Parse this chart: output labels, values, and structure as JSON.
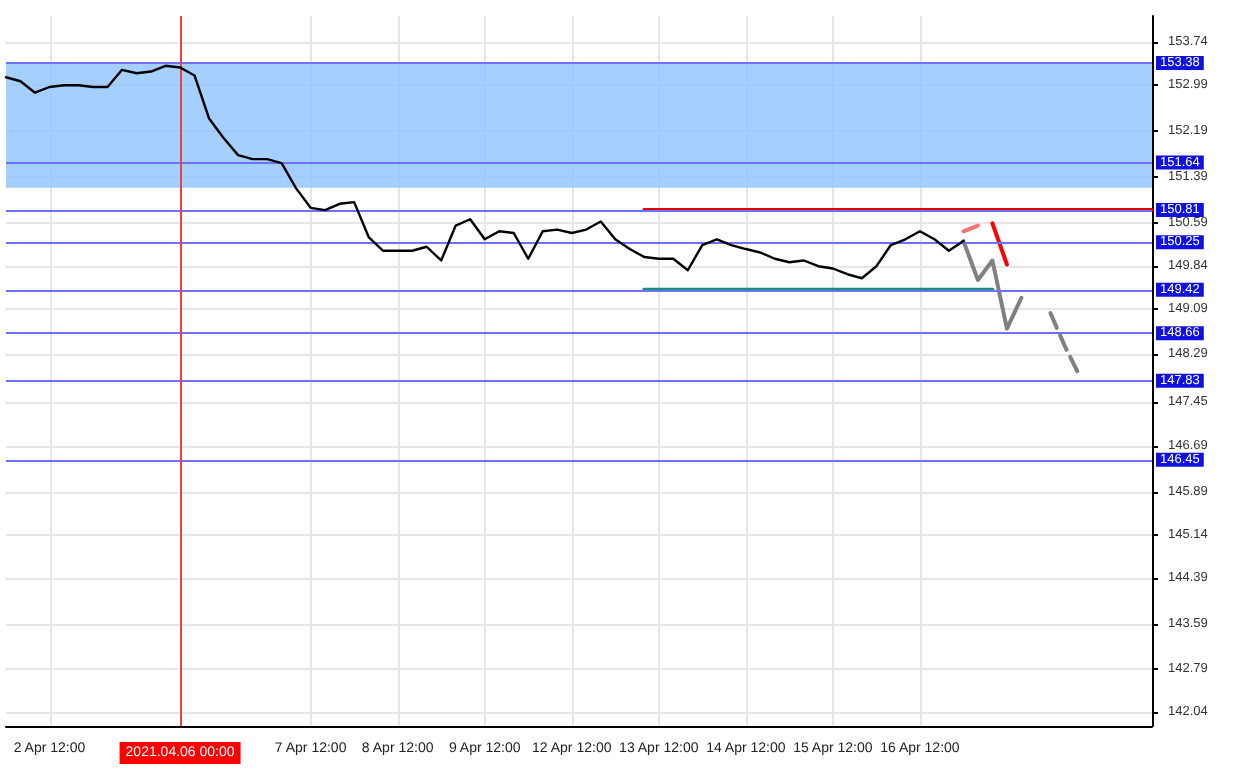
{
  "chart_data": {
    "type": "line",
    "categories": [
      null,
      null,
      null,
      "2 Apr 12:00",
      null,
      null,
      null,
      null,
      null,
      null,
      null,
      null,
      "2021.04.06 00:00",
      null,
      null,
      null,
      null,
      null,
      null,
      null,
      null,
      "7 Apr 12:00",
      null,
      null,
      null,
      null,
      null,
      "8 Apr 12:00",
      null,
      null,
      null,
      null,
      null,
      "9 Apr 12:00",
      null,
      null,
      null,
      null,
      null,
      "12 Apr 12:00",
      null,
      null,
      null,
      null,
      null,
      "13 Apr 12:00",
      null,
      null,
      null,
      null,
      null,
      "14 Apr 12:00",
      null,
      null,
      null,
      null,
      null,
      "15 Apr 12:00",
      null,
      null,
      null,
      null,
      null,
      "16 Apr 12:00",
      null,
      null,
      null,
      null,
      null,
      null,
      null,
      null,
      null,
      null,
      null,
      null,
      null,
      null,
      null,
      null
    ],
    "series": [
      {
        "color": "#000000",
        "values": [
          153.13,
          153.06,
          152.86,
          152.96,
          152.99,
          152.99,
          152.96,
          152.96,
          153.26,
          153.2,
          153.23,
          153.33,
          153.3,
          153.16,
          152.41,
          152.07,
          151.77,
          151.7,
          151.7,
          151.63,
          151.19,
          150.85,
          150.81,
          150.92,
          150.95,
          150.34,
          150.1,
          150.1,
          150.1,
          150.17,
          149.93,
          150.54,
          150.65,
          150.3,
          150.44,
          150.41,
          149.96,
          150.44,
          150.47,
          150.41,
          150.47,
          150.61,
          150.3,
          150.13,
          149.99,
          149.96,
          149.96,
          149.76,
          150.2,
          150.3,
          150.2,
          150.13,
          150.07,
          149.96,
          149.9,
          149.93,
          149.83,
          149.79,
          149.69,
          149.62,
          149.83,
          150.2,
          150.3,
          150.44,
          150.3,
          150.1,
          150.27,
          null,
          null,
          null,
          null,
          null,
          null,
          null,
          null,
          null,
          null,
          null,
          null,
          null
        ]
      },
      {
        "color": "#e00000",
        "values": [
          null,
          null,
          null,
          null,
          null,
          null,
          null,
          null,
          null,
          null,
          null,
          null,
          null,
          null,
          null,
          null,
          null,
          null,
          null,
          null,
          null,
          null,
          null,
          null,
          null,
          null,
          null,
          null,
          null,
          null,
          null,
          null,
          null,
          null,
          null,
          null,
          null,
          null,
          null,
          null,
          null,
          null,
          null,
          null,
          150.81,
          150.81,
          150.81,
          150.81,
          150.81,
          150.81,
          150.81,
          150.81,
          150.81,
          150.81,
          150.81,
          150.81,
          150.81,
          150.81,
          150.81,
          150.81,
          150.81,
          150.81,
          150.81,
          150.81,
          150.81,
          150.81,
          150.81,
          150.81,
          150.81,
          150.81,
          150.81,
          150.81,
          150.81,
          150.81,
          150.81,
          150.81,
          150.81,
          150.81,
          150.81,
          150.81
        ]
      },
      {
        "color": "#1a8f7a",
        "values": [
          null,
          null,
          null,
          null,
          null,
          null,
          null,
          null,
          null,
          null,
          null,
          null,
          null,
          null,
          null,
          null,
          null,
          null,
          null,
          null,
          null,
          null,
          null,
          null,
          null,
          null,
          null,
          null,
          null,
          null,
          null,
          null,
          null,
          null,
          null,
          null,
          null,
          null,
          null,
          null,
          null,
          null,
          null,
          null,
          149.42,
          149.42,
          149.42,
          149.42,
          149.42,
          149.42,
          149.42,
          149.42,
          149.42,
          149.42,
          149.42,
          149.42,
          149.42,
          149.42,
          149.42,
          149.42,
          149.42,
          149.42,
          149.42,
          149.42,
          149.42,
          149.42,
          149.42,
          149.42,
          149.42,
          null,
          null,
          null,
          null,
          null,
          null,
          null,
          null,
          null,
          null,
          null
        ]
      },
      {
        "color": "#808080",
        "values": [
          null,
          null,
          null,
          null,
          null,
          null,
          null,
          null,
          null,
          null,
          null,
          null,
          null,
          null,
          null,
          null,
          null,
          null,
          null,
          null,
          null,
          null,
          null,
          null,
          null,
          null,
          null,
          null,
          null,
          null,
          null,
          null,
          null,
          null,
          null,
          null,
          null,
          null,
          null,
          null,
          null,
          null,
          null,
          null,
          null,
          null,
          null,
          null,
          null,
          null,
          null,
          null,
          null,
          null,
          null,
          null,
          null,
          null,
          null,
          null,
          null,
          null,
          null,
          null,
          null,
          null,
          150.27,
          149.59,
          149.93,
          148.74,
          149.28,
          null,
          null,
          null,
          null,
          null,
          null,
          null,
          null,
          null
        ]
      },
      {
        "color": "#808080",
        "line_style": "dashed",
        "values": [
          null,
          null,
          null,
          null,
          null,
          null,
          null,
          null,
          null,
          null,
          null,
          null,
          null,
          null,
          null,
          null,
          null,
          null,
          null,
          null,
          null,
          null,
          null,
          null,
          null,
          null,
          null,
          null,
          null,
          null,
          null,
          null,
          null,
          null,
          null,
          null,
          null,
          null,
          null,
          null,
          null,
          null,
          null,
          null,
          null,
          null,
          null,
          null,
          null,
          null,
          null,
          null,
          null,
          null,
          null,
          null,
          null,
          null,
          null,
          null,
          null,
          null,
          null,
          null,
          null,
          null,
          null,
          null,
          null,
          null,
          null,
          null,
          149.01,
          148.43,
          147.92,
          null,
          null,
          null,
          null,
          null
        ]
      },
      {
        "color": "#ff7070",
        "line_style": "dashed",
        "values": [
          null,
          null,
          null,
          null,
          null,
          null,
          null,
          null,
          null,
          null,
          null,
          null,
          null,
          null,
          null,
          null,
          null,
          null,
          null,
          null,
          null,
          null,
          null,
          null,
          null,
          null,
          null,
          null,
          null,
          null,
          null,
          null,
          null,
          null,
          null,
          null,
          null,
          null,
          null,
          null,
          null,
          null,
          null,
          null,
          null,
          null,
          null,
          null,
          null,
          null,
          null,
          null,
          null,
          null,
          null,
          null,
          null,
          null,
          null,
          null,
          null,
          null,
          null,
          null,
          null,
          null,
          150.44,
          150.54,
          null,
          null,
          null,
          null,
          null,
          null,
          null,
          null,
          null,
          null,
          null,
          null
        ]
      },
      {
        "color": "#ff0000",
        "values": [
          null,
          null,
          null,
          null,
          null,
          null,
          null,
          null,
          null,
          null,
          null,
          null,
          null,
          null,
          null,
          null,
          null,
          null,
          null,
          null,
          null,
          null,
          null,
          null,
          null,
          null,
          null,
          null,
          null,
          null,
          null,
          null,
          null,
          null,
          null,
          null,
          null,
          null,
          null,
          null,
          null,
          null,
          null,
          null,
          null,
          null,
          null,
          null,
          null,
          null,
          null,
          null,
          null,
          null,
          null,
          null,
          null,
          null,
          null,
          null,
          null,
          null,
          null,
          null,
          null,
          null,
          null,
          null,
          150.58,
          149.86,
          null,
          null,
          null,
          null,
          null,
          null,
          null,
          null,
          null,
          null
        ]
      }
    ],
    "ylim": [
      141.8,
      154.2
    ],
    "yticks": [
      142.04,
      142.79,
      143.59,
      144.39,
      145.14,
      145.89,
      146.69,
      147.45,
      148.29,
      149.09,
      149.84,
      150.59,
      151.39,
      152.19,
      152.99,
      153.74
    ],
    "ref_lines": [
      {
        "axis": "x",
        "value": "2021.04.06 00:00",
        "color": "#f04040"
      },
      {
        "axis": "y",
        "value": 153.38,
        "label": "153.38",
        "color": "#7070ff"
      },
      {
        "axis": "y",
        "value": 151.64,
        "label": "151.64",
        "color": "#7070ff"
      },
      {
        "axis": "y",
        "value": 150.81,
        "label": "150.81",
        "color": "#7070ff"
      },
      {
        "axis": "y",
        "value": 150.25,
        "label": "150.25",
        "color": "#7070ff"
      },
      {
        "axis": "y",
        "value": 149.42,
        "label": "149.42",
        "color": "#7070ff"
      },
      {
        "axis": "y",
        "value": 148.66,
        "label": "148.66",
        "color": "#7070ff"
      },
      {
        "axis": "y",
        "value": 147.83,
        "label": "147.83",
        "color": "#7070ff"
      },
      {
        "axis": "y",
        "value": 146.45,
        "label": "146.45",
        "color": "#7070ff"
      }
    ],
    "bands": [
      {
        "axis": "y",
        "from": 151.2,
        "to": 153.38,
        "color": "#8fc3ff"
      }
    ],
    "grid": true,
    "marker": "none",
    "line_style": "solid"
  }
}
